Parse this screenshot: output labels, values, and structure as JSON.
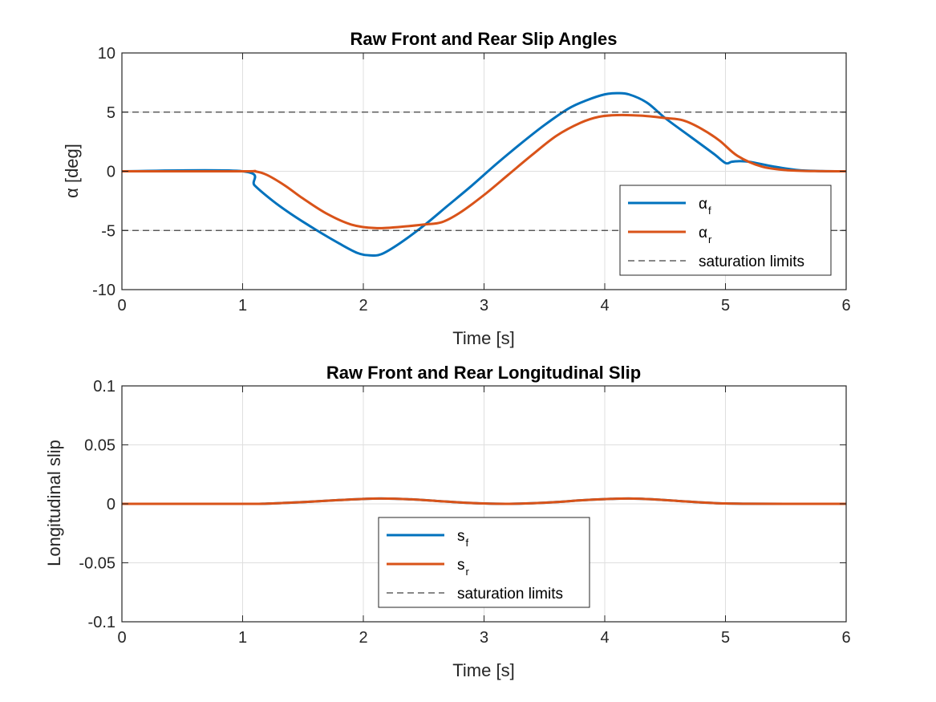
{
  "colors": {
    "front": "#0072BD",
    "rear": "#D95319",
    "limits": "#404040",
    "grid": "#DFDFDF",
    "axes": "#262626"
  },
  "chart_data": [
    {
      "type": "line",
      "title": "Raw Front and Rear Slip Angles",
      "xlabel": "Time [s]",
      "ylabel": "α [deg]",
      "xlim": [
        0,
        6
      ],
      "ylim": [
        -10,
        10
      ],
      "xticks": [
        0,
        1,
        2,
        3,
        4,
        5,
        6
      ],
      "yticks": [
        -10,
        -5,
        0,
        5,
        10
      ],
      "xtick_labels": [
        "0",
        "1",
        "2",
        "3",
        "4",
        "5",
        "6"
      ],
      "ytick_labels": [
        "-10",
        "-5",
        "0",
        "5",
        "10"
      ],
      "grid": true,
      "legend_placement": "bottom-right",
      "series": [
        {
          "name": "α",
          "subscript": "f",
          "color_key": "front",
          "x": [
            0,
            1.0,
            1.1,
            1.25,
            1.4,
            1.6,
            1.8,
            1.95,
            2.05,
            2.15,
            2.3,
            2.5,
            2.7,
            2.9,
            3.1,
            3.3,
            3.5,
            3.7,
            3.85,
            4.0,
            4.1,
            4.2,
            4.35,
            4.5,
            4.7,
            4.9,
            5.0,
            5.05,
            5.1,
            5.2,
            5.4,
            5.6,
            5.8,
            6.0
          ],
          "y": [
            0,
            0,
            -1.2,
            -2.5,
            -3.6,
            -4.9,
            -6.1,
            -6.9,
            -7.1,
            -7.0,
            -6.1,
            -4.6,
            -2.9,
            -1.2,
            0.6,
            2.3,
            3.9,
            5.3,
            6.0,
            6.5,
            6.6,
            6.5,
            5.8,
            4.5,
            3.0,
            1.5,
            0.7,
            0.8,
            0.85,
            0.8,
            0.4,
            0.1,
            0.02,
            0
          ]
        },
        {
          "name": "α",
          "subscript": "r",
          "color_key": "rear",
          "x": [
            0,
            1.0,
            1.1,
            1.2,
            1.35,
            1.5,
            1.7,
            1.9,
            2.1,
            2.3,
            2.5,
            2.65,
            2.8,
            3.0,
            3.2,
            3.4,
            3.6,
            3.8,
            3.95,
            4.1,
            4.3,
            4.5,
            4.65,
            4.8,
            4.95,
            5.1,
            5.3,
            5.5,
            5.7,
            6.0
          ],
          "y": [
            0,
            0,
            0,
            -0.3,
            -1.2,
            -2.3,
            -3.6,
            -4.5,
            -4.8,
            -4.7,
            -4.5,
            -4.3,
            -3.5,
            -2.0,
            -0.3,
            1.4,
            3.0,
            4.1,
            4.6,
            4.75,
            4.7,
            4.5,
            4.3,
            3.6,
            2.6,
            1.3,
            0.4,
            0.1,
            0.02,
            0
          ]
        },
        {
          "name": "saturation limits",
          "color_key": "limits",
          "style": "dashed",
          "values": [
            5,
            -5
          ]
        }
      ],
      "legend": [
        {
          "text": "α",
          "sub": "f",
          "color_key": "front",
          "style": "solid"
        },
        {
          "text": "α",
          "sub": "r",
          "color_key": "rear",
          "style": "solid"
        },
        {
          "text": "saturation limits",
          "sub": "",
          "color_key": "limits",
          "style": "dashed"
        }
      ]
    },
    {
      "type": "line",
      "title": "Raw Front and Rear Longitudinal Slip",
      "xlabel": "Time [s]",
      "ylabel": "Longitudinal slip",
      "xlim": [
        0,
        6
      ],
      "ylim": [
        -0.1,
        0.1
      ],
      "xticks": [
        0,
        1,
        2,
        3,
        4,
        5,
        6
      ],
      "yticks": [
        -0.1,
        -0.05,
        0,
        0.05,
        0.1
      ],
      "xtick_labels": [
        "0",
        "1",
        "2",
        "3",
        "4",
        "5",
        "6"
      ],
      "ytick_labels": [
        "-0.1",
        "-0.05",
        "0",
        "0.05",
        "0.1"
      ],
      "grid": true,
      "legend_placement": "bottom-center",
      "series": [
        {
          "name": "s",
          "subscript": "f",
          "color_key": "front",
          "x": [
            0,
            1.0,
            1.2,
            1.4,
            1.6,
            1.8,
            2.0,
            2.15,
            2.4,
            2.6,
            2.8,
            3.0,
            3.2,
            3.4,
            3.6,
            3.8,
            4.0,
            4.2,
            4.4,
            4.6,
            4.8,
            5.0,
            5.2,
            5.5,
            6.0
          ],
          "y": [
            0,
            0,
            0.0002,
            0.001,
            0.002,
            0.0032,
            0.0042,
            0.0045,
            0.0038,
            0.0025,
            0.0012,
            0.0003,
            0.0,
            0.0005,
            0.0015,
            0.003,
            0.004,
            0.0045,
            0.0038,
            0.0025,
            0.0012,
            0.0003,
            0.0001,
            0,
            0
          ]
        },
        {
          "name": "s",
          "subscript": "r",
          "color_key": "rear",
          "x": [
            0,
            1.0,
            1.2,
            1.4,
            1.6,
            1.8,
            2.0,
            2.15,
            2.4,
            2.6,
            2.8,
            3.0,
            3.2,
            3.4,
            3.6,
            3.8,
            4.0,
            4.2,
            4.4,
            4.6,
            4.8,
            5.0,
            5.2,
            5.5,
            6.0
          ],
          "y": [
            0,
            0,
            0.0002,
            0.001,
            0.002,
            0.0032,
            0.0042,
            0.0045,
            0.0038,
            0.0025,
            0.0012,
            0.0003,
            0.0,
            0.0005,
            0.0015,
            0.003,
            0.004,
            0.0045,
            0.0038,
            0.0025,
            0.0012,
            0.0003,
            0.0001,
            0,
            0
          ]
        }
      ],
      "legend": [
        {
          "text": "s",
          "sub": "f",
          "color_key": "front",
          "style": "solid"
        },
        {
          "text": "s",
          "sub": "r",
          "color_key": "rear",
          "style": "solid"
        },
        {
          "text": "saturation limits",
          "sub": "",
          "color_key": "limits",
          "style": "dashed"
        }
      ]
    }
  ]
}
